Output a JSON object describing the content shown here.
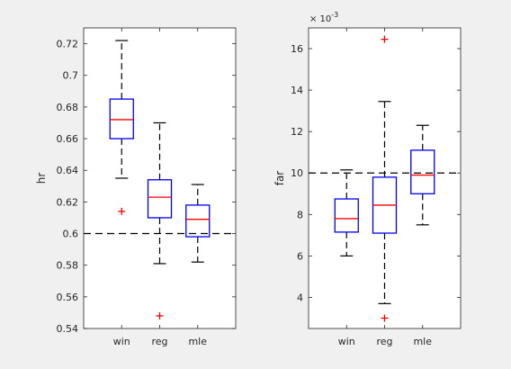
{
  "chart_data": [
    {
      "type": "box",
      "ylabel": "hr",
      "ylim": [
        0.54,
        0.73
      ],
      "yticks": [
        "0.54",
        "0.56",
        "0.58",
        "0.6",
        "0.62",
        "0.64",
        "0.66",
        "0.68",
        "0.7",
        "0.72"
      ],
      "reference_line": 0.6,
      "categories": [
        "win",
        "reg",
        "mle"
      ],
      "boxes": [
        {
          "name": "win",
          "whisker_low": 0.635,
          "q1": 0.66,
          "median": 0.672,
          "q3": 0.685,
          "whisker_high": 0.722,
          "outliers": [
            0.614
          ]
        },
        {
          "name": "reg",
          "whisker_low": 0.581,
          "q1": 0.61,
          "median": 0.623,
          "q3": 0.634,
          "whisker_high": 0.67,
          "outliers": [
            0.548
          ]
        },
        {
          "name": "mle",
          "whisker_low": 0.582,
          "q1": 0.598,
          "median": 0.609,
          "q3": 0.618,
          "whisker_high": 0.631,
          "outliers": []
        }
      ],
      "box_color": "#0000ff",
      "median_color": "#ff0000",
      "outlier_color": "#ff0000"
    },
    {
      "type": "box",
      "ylabel": "far",
      "y_exponent_label": "× 10",
      "y_exponent": "-3",
      "ylim": [
        2.5,
        17
      ],
      "yticks": [
        "4",
        "6",
        "8",
        "10",
        "12",
        "14",
        "16"
      ],
      "reference_line": 10,
      "categories": [
        "win",
        "reg",
        "mle"
      ],
      "boxes": [
        {
          "name": "win",
          "whisker_low": 6.0,
          "q1": 7.15,
          "median": 7.8,
          "q3": 8.75,
          "whisker_high": 10.15,
          "outliers": []
        },
        {
          "name": "reg",
          "whisker_low": 3.7,
          "q1": 7.1,
          "median": 8.45,
          "q3": 9.8,
          "whisker_high": 13.45,
          "outliers": [
            16.45,
            3.0
          ]
        },
        {
          "name": "mle",
          "whisker_low": 7.5,
          "q1": 9.0,
          "median": 9.9,
          "q3": 11.1,
          "whisker_high": 12.3,
          "outliers": []
        }
      ],
      "box_color": "#0000ff",
      "median_color": "#ff0000",
      "outlier_color": "#ff0000"
    }
  ]
}
